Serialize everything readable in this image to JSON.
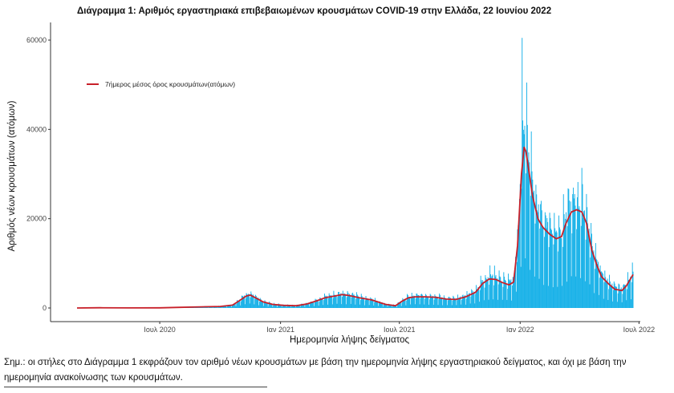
{
  "chart_data": {
    "type": "bar",
    "title": "Διάγραμμα 1: Αριθμός εργαστηριακά επιβεβαιωμένων κρουσμάτων COVID-19 στην Ελλάδα, 22 Ιουνίου 2022",
    "xlabel": "Ημερομηνία λήψης δείγματος",
    "ylabel": "Αριθμός νέων κρουσμάτων (ατόμων)",
    "ylim": [
      0,
      62000
    ],
    "yticks": [
      0,
      20000,
      40000,
      60000
    ],
    "ytick_labels": [
      "0",
      "20000",
      "40000",
      "60000"
    ],
    "xlim": [
      "2020-02-26",
      "2022-06-22"
    ],
    "xticks": [
      {
        "date": "2020-07-01",
        "label": "Ιουλ 2020"
      },
      {
        "date": "2021-01-01",
        "label": "Ιαν 2021"
      },
      {
        "date": "2021-07-01",
        "label": "Ιουλ 2021"
      },
      {
        "date": "2022-01-01",
        "label": "Ιαν 2022"
      },
      {
        "date": "2022-07-01",
        "label": "Ιουλ 2022"
      }
    ],
    "bar_color": "#1ab2e8",
    "line_color": "#c8202a",
    "legend": {
      "label": "7ήμερος μέσος όρος κρουσμάτων(ατόμων)",
      "position": "top-left"
    },
    "grid": false,
    "series": [
      {
        "kind": "bars",
        "x_start": "2020-02-26",
        "x_end": "2022-06-22",
        "weekly_pattern": "lower counts on Sundays and Mondays"
      },
      {
        "name": "7ήμερος μέσος όρος κρουσμάτων(ατόμων)",
        "kind": "line",
        "points": [
          [
            "2020-02-26",
            0
          ],
          [
            "2020-04-01",
            60
          ],
          [
            "2020-05-15",
            20
          ],
          [
            "2020-07-01",
            30
          ],
          [
            "2020-08-01",
            150
          ],
          [
            "2020-09-01",
            250
          ],
          [
            "2020-10-01",
            350
          ],
          [
            "2020-10-20",
            650
          ],
          [
            "2020-11-01",
            1800
          ],
          [
            "2020-11-10",
            2700
          ],
          [
            "2020-11-16",
            2900
          ],
          [
            "2020-11-25",
            2200
          ],
          [
            "2020-12-05",
            1400
          ],
          [
            "2020-12-20",
            800
          ],
          [
            "2021-01-05",
            600
          ],
          [
            "2021-01-25",
            500
          ],
          [
            "2021-02-10",
            900
          ],
          [
            "2021-02-25",
            1600
          ],
          [
            "2021-03-10",
            2300
          ],
          [
            "2021-03-25",
            2700
          ],
          [
            "2021-04-05",
            3000
          ],
          [
            "2021-04-15",
            2800
          ],
          [
            "2021-05-01",
            2300
          ],
          [
            "2021-05-20",
            1800
          ],
          [
            "2021-06-10",
            800
          ],
          [
            "2021-06-25",
            500
          ],
          [
            "2021-07-05",
            1500
          ],
          [
            "2021-07-15",
            2300
          ],
          [
            "2021-07-25",
            2500
          ],
          [
            "2021-08-10",
            2500
          ],
          [
            "2021-08-25",
            2400
          ],
          [
            "2021-09-10",
            2000
          ],
          [
            "2021-09-25",
            1900
          ],
          [
            "2021-10-10",
            2500
          ],
          [
            "2021-10-25",
            3500
          ],
          [
            "2021-11-05",
            5500
          ],
          [
            "2021-11-15",
            6500
          ],
          [
            "2021-11-25",
            6400
          ],
          [
            "2021-12-05",
            5700
          ],
          [
            "2021-12-15",
            5200
          ],
          [
            "2021-12-22",
            5800
          ],
          [
            "2021-12-28",
            14000
          ],
          [
            "2022-01-03",
            30000
          ],
          [
            "2022-01-07",
            36000
          ],
          [
            "2022-01-10",
            35000
          ],
          [
            "2022-01-14",
            31000
          ],
          [
            "2022-01-20",
            25000
          ],
          [
            "2022-01-28",
            20000
          ],
          [
            "2022-02-05",
            18000
          ],
          [
            "2022-02-15",
            16500
          ],
          [
            "2022-02-25",
            15500
          ],
          [
            "2022-03-05",
            16000
          ],
          [
            "2022-03-12",
            19000
          ],
          [
            "2022-03-20",
            21500
          ],
          [
            "2022-03-28",
            22000
          ],
          [
            "2022-04-05",
            21500
          ],
          [
            "2022-04-12",
            19000
          ],
          [
            "2022-04-20",
            13000
          ],
          [
            "2022-04-28",
            9500
          ],
          [
            "2022-05-05",
            7000
          ],
          [
            "2022-05-15",
            5500
          ],
          [
            "2022-05-25",
            4200
          ],
          [
            "2022-06-05",
            3900
          ],
          [
            "2022-06-12",
            5000
          ],
          [
            "2022-06-18",
            6500
          ],
          [
            "2022-06-22",
            7500
          ]
        ]
      }
    ]
  },
  "note": {
    "text": "Σημ.: οι στήλες στο Διάγραμμα 1 εκφράζουν τον αριθμό νέων κρουσμάτων με βάση την ημερομηνία λήψης εργαστηριακού δείγματος, και όχι με βάση την ημερομηνία ανακοίνωσης των κρουσμάτων."
  }
}
